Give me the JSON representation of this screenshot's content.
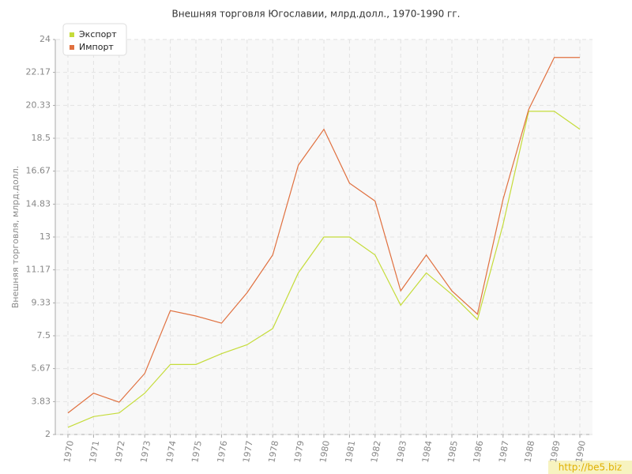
{
  "chart_data": {
    "type": "line",
    "title": "Внешняя торговля Югославии, млрд.долл., 1970-1990 гг.",
    "y_label": "Внешняя торговля, млрд.долл.",
    "categories": [
      "1970",
      "1971",
      "1972",
      "1973",
      "1974",
      "1975",
      "1976",
      "1977",
      "1978",
      "1979",
      "1980",
      "1981",
      "1982",
      "1983",
      "1984",
      "1985",
      "1986",
      "1987",
      "1988",
      "1989",
      "1990"
    ],
    "series": [
      {
        "name": "Экспорт",
        "color": "#c5dc3a",
        "values": [
          2.4,
          3.0,
          3.2,
          4.3,
          5.9,
          5.9,
          6.5,
          7.0,
          7.9,
          11.0,
          13.0,
          13.0,
          12.0,
          9.2,
          11.0,
          9.8,
          8.4,
          13.7,
          20.0,
          20.0,
          19.0
        ]
      },
      {
        "name": "Импорт",
        "color": "#e0703f",
        "values": [
          3.2,
          4.3,
          3.8,
          5.4,
          8.9,
          8.6,
          8.2,
          9.9,
          12.0,
          17.0,
          19.0,
          16.0,
          15.0,
          10.0,
          12.0,
          10.0,
          8.7,
          15.1,
          20.1,
          23.0,
          23.0
        ]
      }
    ],
    "ylim": [
      2,
      24
    ],
    "yticks": [
      2,
      3.83,
      5.67,
      7.5,
      9.33,
      11.17,
      13,
      14.83,
      16.67,
      18.5,
      20.33,
      22.17,
      24
    ],
    "grid": true,
    "legend": "top-left",
    "watermark": "http://be5.biz"
  }
}
